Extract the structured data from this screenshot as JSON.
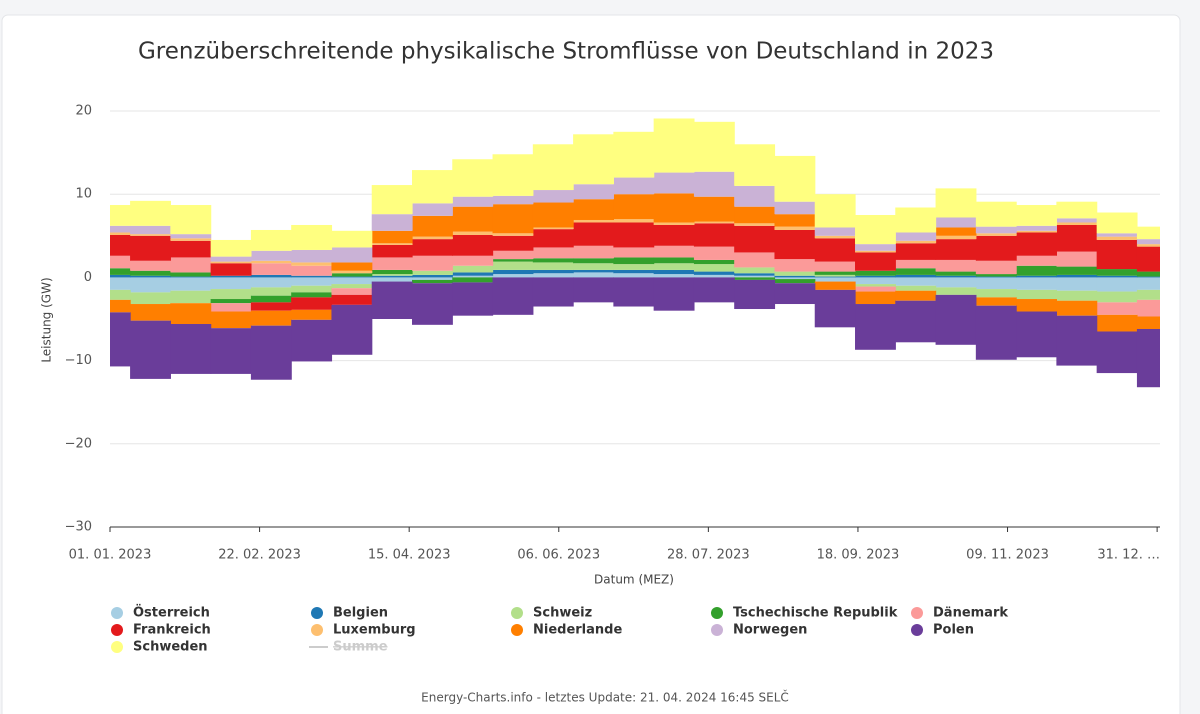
{
  "chart_data": {
    "type": "stacked-column",
    "title": "Grenzüberschreitende physikalische Stromflüsse von Deutschland in 2023",
    "x_label": "Datum (MEZ)",
    "y_label": "Leistung (GW)",
    "x": [
      "2023-01-01",
      "2023-01-15",
      "2023-01-29",
      "2023-02-12",
      "2023-02-26",
      "2023-03-12",
      "2023-03-26",
      "2023-04-09",
      "2023-04-23",
      "2023-05-07",
      "2023-05-21",
      "2023-06-04",
      "2023-06-18",
      "2023-07-02",
      "2023-07-16",
      "2023-07-30",
      "2023-08-13",
      "2023-08-27",
      "2023-09-10",
      "2023-09-24",
      "2023-10-08",
      "2023-10-22",
      "2023-11-05",
      "2023-11-19",
      "2023-12-03",
      "2023-12-17",
      "2023-12-31"
    ],
    "xlim": [
      "2023-01-01",
      "2024-01-01"
    ],
    "xticks": [
      {
        "value": "2023-01-01",
        "label": "01. 01. 2023"
      },
      {
        "value": "2023-02-22",
        "label": "22. 02. 2023"
      },
      {
        "value": "2023-04-15",
        "label": "15. 04. 2023"
      },
      {
        "value": "2023-06-06",
        "label": "06. 06. 2023"
      },
      {
        "value": "2023-07-28",
        "label": "28. 07. 2023"
      },
      {
        "value": "2023-09-18",
        "label": "18. 09. 2023"
      },
      {
        "value": "2023-11-09",
        "label": "09. 11. 2023"
      },
      {
        "value": "2023-12-31",
        "label": "31. 12. …"
      }
    ],
    "ylim": [
      -30,
      20
    ],
    "yticks": [
      {
        "value": -30,
        "label": "−30"
      },
      {
        "value": -20,
        "label": "−20"
      },
      {
        "value": -10,
        "label": "−10"
      },
      0,
      10,
      20
    ],
    "grid": true,
    "series": [
      {
        "name": "Österreich",
        "color": "#a6cee3",
        "values": [
          -1.5,
          -1.8,
          -1.6,
          -1.4,
          -1.2,
          -1.0,
          -0.8,
          -0.5,
          -0.3,
          0.2,
          0.4,
          0.5,
          0.6,
          0.5,
          0.4,
          0.3,
          0.2,
          -0.2,
          -0.5,
          -0.8,
          -1.0,
          -1.2,
          -1.4,
          -1.5,
          -1.6,
          -1.7,
          -1.5
        ]
      },
      {
        "name": "Belgien",
        "color": "#1f78b4",
        "values": [
          0.3,
          0.2,
          0.1,
          0.2,
          0.3,
          0.2,
          0.1,
          0.2,
          0.3,
          0.4,
          0.5,
          0.4,
          0.3,
          0.4,
          0.5,
          0.4,
          0.3,
          0.2,
          0.1,
          0.2,
          0.3,
          0.2,
          0.1,
          0.2,
          0.3,
          0.2,
          0.1
        ]
      },
      {
        "name": "Schweiz",
        "color": "#b2df8a",
        "values": [
          -1.2,
          -1.4,
          -1.5,
          -1.2,
          -1.0,
          -0.8,
          -0.5,
          0.2,
          0.5,
          0.8,
          1.0,
          0.9,
          0.8,
          0.7,
          0.8,
          0.9,
          0.7,
          0.5,
          0.2,
          -0.3,
          -0.6,
          -0.9,
          -1.0,
          -1.1,
          -1.2,
          -1.3,
          -1.2
        ]
      },
      {
        "name": "Tschechische Republik",
        "color": "#33a02c",
        "values": [
          0.8,
          0.6,
          0.5,
          -0.5,
          -0.8,
          -0.6,
          0.4,
          0.5,
          -0.4,
          -0.6,
          0.3,
          0.5,
          0.6,
          0.8,
          0.7,
          0.5,
          -0.3,
          -0.5,
          0.4,
          0.6,
          0.8,
          0.5,
          0.3,
          1.2,
          1.0,
          0.8,
          0.6
        ]
      },
      {
        "name": "Dänemark",
        "color": "#fb9a99",
        "values": [
          1.5,
          1.2,
          1.8,
          -1.0,
          1.4,
          1.2,
          -0.8,
          1.5,
          1.8,
          1.2,
          1.0,
          1.3,
          1.5,
          1.2,
          1.4,
          1.6,
          1.8,
          1.5,
          1.2,
          -0.6,
          1.0,
          1.4,
          1.6,
          1.2,
          1.8,
          -1.5,
          -2.0
        ]
      },
      {
        "name": "Frankreich",
        "color": "#e31a1c",
        "values": [
          2.5,
          3.0,
          2.0,
          1.5,
          -1.0,
          -1.5,
          -1.2,
          1.5,
          2.0,
          2.5,
          1.8,
          2.2,
          2.8,
          3.0,
          2.5,
          2.8,
          3.2,
          3.5,
          2.8,
          2.2,
          2.0,
          2.5,
          3.0,
          2.8,
          3.2,
          3.5,
          3.0
        ]
      },
      {
        "name": "Luxemburg",
        "color": "#fdbf6f",
        "values": [
          0.3,
          0.2,
          0.3,
          0.2,
          0.3,
          0.4,
          0.3,
          0.2,
          0.3,
          0.4,
          0.3,
          0.2,
          0.3,
          0.4,
          0.3,
          0.2,
          0.3,
          0.4,
          0.3,
          0.2,
          0.3,
          0.4,
          0.3,
          0.2,
          0.3,
          0.4,
          0.3
        ]
      },
      {
        "name": "Niederlande",
        "color": "#ff7f00",
        "values": [
          -1.5,
          -2.0,
          -2.5,
          -2.0,
          -1.8,
          -1.2,
          1.0,
          1.5,
          2.5,
          3.0,
          3.5,
          3.0,
          2.5,
          3.0,
          3.5,
          3.0,
          2.0,
          1.5,
          -1.0,
          -1.5,
          -1.2,
          1.0,
          -1.0,
          -1.5,
          -1.8,
          -2.0,
          -1.5
        ]
      },
      {
        "name": "Norwegen",
        "color": "#cab2d6",
        "values": [
          0.8,
          1.0,
          0.5,
          0.6,
          1.2,
          1.5,
          1.8,
          2.0,
          1.5,
          1.2,
          1.0,
          1.5,
          1.8,
          2.0,
          2.5,
          3.0,
          2.5,
          1.5,
          1.0,
          0.8,
          1.0,
          1.2,
          0.8,
          0.6,
          0.5,
          0.4,
          0.6
        ]
      },
      {
        "name": "Polen",
        "color": "#6a3d9a",
        "values": [
          -6.5,
          -7.0,
          -6.0,
          -5.5,
          -6.5,
          -5.0,
          -6.0,
          -4.5,
          -5.0,
          -4.0,
          -4.5,
          -3.5,
          -3.0,
          -3.5,
          -4.0,
          -3.0,
          -3.5,
          -2.5,
          -4.5,
          -5.5,
          -5.0,
          -6.0,
          -6.5,
          -5.5,
          -6.0,
          -5.0,
          -7.0
        ]
      },
      {
        "name": "Schweden",
        "color": "#ffff80",
        "values": [
          2.5,
          3.0,
          3.5,
          2.0,
          2.5,
          3.0,
          2.0,
          3.5,
          4.0,
          4.5,
          5.0,
          5.5,
          6.0,
          5.5,
          6.5,
          6.0,
          5.0,
          5.5,
          4.0,
          3.5,
          3.0,
          3.5,
          3.0,
          2.5,
          2.0,
          2.5,
          1.5
        ]
      }
    ],
    "hidden_series": [
      {
        "name": "Summe",
        "color": "#cccccc"
      }
    ],
    "footer": "Energy-Charts.info - letztes Update: 21. 04. 2024 16:45 SELČ"
  }
}
